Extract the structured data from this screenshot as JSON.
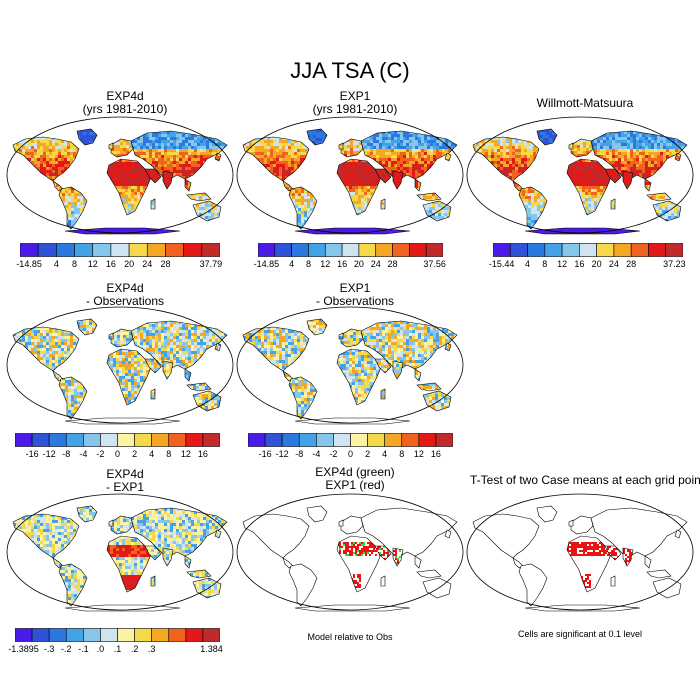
{
  "title": "JJA TSA (C)",
  "panels": [
    {
      "id": "p1",
      "title_lines": [
        "EXP4d",
        "(yrs 1981-2010)"
      ],
      "theme": "abs"
    },
    {
      "id": "p2",
      "title_lines": [
        "EXP1",
        "(yrs 1981-2010)"
      ],
      "theme": "abs"
    },
    {
      "id": "p3",
      "title_lines": [
        "Willmott-Matsuura"
      ],
      "theme": "abs"
    },
    {
      "id": "p4",
      "title_lines": [
        "EXP4d",
        "- Observations"
      ],
      "theme": "diff"
    },
    {
      "id": "p5",
      "title_lines": [
        "EXP1",
        "- Observations"
      ],
      "theme": "diff"
    },
    {
      "id": "p6",
      "title_lines": [
        "EXP4d",
        "- EXP1"
      ],
      "theme": "d2"
    },
    {
      "id": "p7",
      "title_lines": [
        "EXP4d (green)",
        "EXP1 (red)"
      ],
      "theme": "sig2"
    },
    {
      "id": "p8",
      "title_lines": [
        "T-Test of two Case means at each grid point"
      ],
      "theme": "sig"
    }
  ],
  "colorbars": [
    {
      "id": "cb1",
      "colors": [
        "#4b1ae8",
        "#2f52d8",
        "#2a78e0",
        "#44a2e6",
        "#85c6ea",
        "#cfe4f0",
        "#f5d94a",
        "#f5a623",
        "#f0621e",
        "#e51818",
        "#c02a2a"
      ],
      "labels": [
        "-14.85",
        "4",
        "8",
        "12",
        "16",
        "20",
        "24",
        "28",
        "37.79"
      ]
    },
    {
      "id": "cb2",
      "colors": [
        "#4b1ae8",
        "#2f52d8",
        "#2a78e0",
        "#44a2e6",
        "#85c6ea",
        "#cfe4f0",
        "#f5d94a",
        "#f5a623",
        "#f0621e",
        "#e51818",
        "#c02a2a"
      ],
      "labels": [
        "-14.85",
        "4",
        "8",
        "12",
        "16",
        "20",
        "24",
        "28",
        "37.56"
      ]
    },
    {
      "id": "cb3",
      "colors": [
        "#4b1ae8",
        "#2f52d8",
        "#2a78e0",
        "#44a2e6",
        "#85c6ea",
        "#cfe4f0",
        "#f5d94a",
        "#f5a623",
        "#f0621e",
        "#e51818",
        "#c02a2a"
      ],
      "labels": [
        "-15.44",
        "4",
        "8",
        "12",
        "16",
        "20",
        "24",
        "28",
        "37.23"
      ]
    },
    {
      "id": "cb4",
      "colors": [
        "#4b1ae8",
        "#2f52d8",
        "#2a78e0",
        "#44a2e6",
        "#85c6ea",
        "#cfe4f0",
        "#fbf3a2",
        "#f5d94a",
        "#f5a623",
        "#f0621e",
        "#e51818",
        "#c02a2a"
      ],
      "labels": [
        "-16",
        "-12",
        "-8",
        "-4",
        "-2",
        "0",
        "2",
        "4",
        "8",
        "12",
        "16"
      ]
    },
    {
      "id": "cb5",
      "colors": [
        "#4b1ae8",
        "#2f52d8",
        "#2a78e0",
        "#44a2e6",
        "#85c6ea",
        "#cfe4f0",
        "#fbf3a2",
        "#f5d94a",
        "#f5a623",
        "#f0621e",
        "#e51818",
        "#c02a2a"
      ],
      "labels": [
        "-16",
        "-12",
        "-8",
        "-4",
        "-2",
        "0",
        "2",
        "4",
        "8",
        "12",
        "16"
      ]
    },
    {
      "id": "cb6",
      "colors": [
        "#4b1ae8",
        "#2f52d8",
        "#2a78e0",
        "#44a2e6",
        "#85c6ea",
        "#cfe4f0",
        "#fbf3a2",
        "#f5d94a",
        "#f5a623",
        "#f0621e",
        "#e51818",
        "#c02a2a"
      ],
      "labels": [
        "-1.3895",
        "-.3",
        "-.2",
        "-.1",
        ".0",
        ".1",
        ".2",
        ".3",
        "1.384"
      ]
    }
  ],
  "notes": {
    "model_relative": "Model relative to Obs",
    "significance": "Cells are significant at 0.1 level"
  },
  "colors": {
    "outline": "#000000",
    "ocean": "#ffffff"
  }
}
